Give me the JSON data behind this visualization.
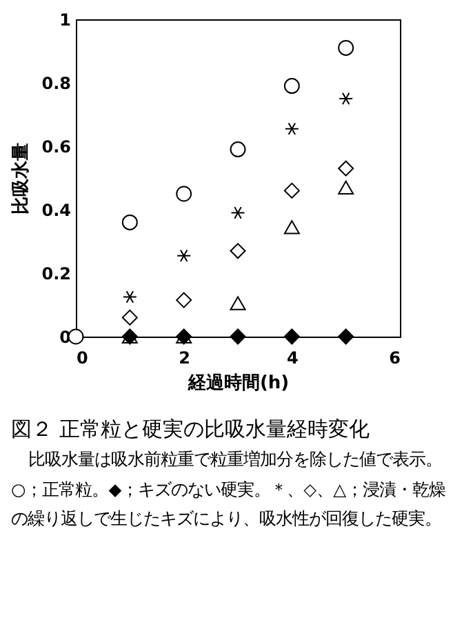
{
  "chart_data": {
    "type": "scatter",
    "title": "図２ 正常粒と硬実の比吸水量経時変化",
    "xlabel": "経過時間(h)",
    "ylabel": "比吸水量",
    "annotations": [
      "比吸水量は吸水前粒重で粒重増加分を除した値で表示。○；正常粒。◆；キズのない硬実。＊、◇、△；浸漬・乾燥の繰り返しで生じたキズにより、吸水性が回復した硬実。"
    ],
    "x": [
      0,
      1,
      2,
      3,
      4,
      5
    ],
    "series": [
      {
        "color": "#ffffff",
        "marker": "circle",
        "values": [
          0,
          0.36,
          0.45,
          0.59,
          0.79,
          0.91
        ]
      },
      {
        "color": "#000000",
        "marker": "cross",
        "values": [
          null,
          0.125,
          0.255,
          0.39,
          0.655,
          0.75
        ]
      },
      {
        "color": "#ffffff",
        "marker": "diamond",
        "values": [
          null,
          0.06,
          0.115,
          0.27,
          0.46,
          0.53
        ]
      },
      {
        "color": "#ffffff",
        "marker": "triangle",
        "values": [
          null,
          0,
          0,
          0.105,
          0.345,
          0.47
        ]
      },
      {
        "color": "#000000",
        "marker": "diamond",
        "values": [
          null,
          0,
          0,
          0,
          0,
          0
        ]
      }
    ],
    "xlim": [
      0,
      6
    ],
    "xticks": [
      0,
      2,
      4,
      6
    ],
    "ylim": [
      0,
      1
    ],
    "yticks": [
      0,
      0.2,
      0.4,
      0.6,
      0.8,
      1
    ],
    "grid": false
  }
}
